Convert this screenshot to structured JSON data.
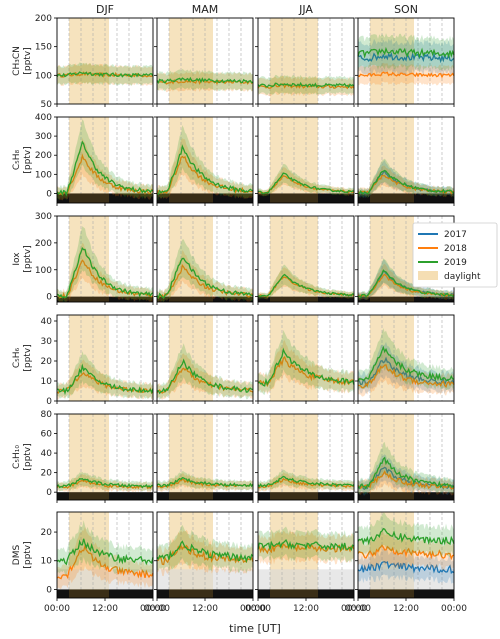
{
  "chart_data": {
    "type": "line",
    "columns": [
      "DJF",
      "MAM",
      "JJA",
      "SON"
    ],
    "x_ticks": [
      "00:00",
      "12:00",
      "00:00"
    ],
    "xlabel": "time [UT]",
    "legend": {
      "placement": "right",
      "items": [
        {
          "name": "2017",
          "color": "#1f77b4"
        },
        {
          "name": "2018",
          "color": "#ff7f0e"
        },
        {
          "name": "2019",
          "color": "#2ca02c"
        },
        {
          "name": "daylight",
          "color": "#f5deb3"
        }
      ]
    },
    "daylight_hours": {
      "DJF": [
        3,
        13
      ],
      "MAM": [
        3,
        14
      ],
      "JJA": [
        3,
        15
      ],
      "SON": [
        3,
        14
      ]
    },
    "rows": [
      {
        "ylabel_lines": [
          "CH₃CN",
          "[pptv]"
        ],
        "ylim": [
          50,
          200
        ],
        "yticks": [
          "50",
          "100",
          "150",
          "200"
        ],
        "ytick_values": [
          50,
          100,
          150,
          200
        ],
        "visible_ytick_labels": [
          "100",
          "150",
          "200"
        ],
        "black_bar": false,
        "panels": {
          "DJF": {
            "2018": {
              "base": 100,
              "amp": 3,
              "noise": 3
            },
            "2019": {
              "base": 100,
              "amp": 5,
              "noise": 3
            }
          },
          "MAM": {
            "2018": {
              "base": 88,
              "amp": 2,
              "noise": 3
            },
            "2019": {
              "base": 90,
              "amp": 4,
              "noise": 3
            }
          },
          "JJA": {
            "2018": {
              "base": 80,
              "amp": 2,
              "noise": 3
            },
            "2019": {
              "base": 82,
              "amp": 3,
              "noise": 3
            }
          },
          "SON": {
            "2017": {
              "base": 130,
              "amp": 5,
              "noise": 6
            },
            "2018": {
              "base": 100,
              "amp": 3,
              "noise": 3
            },
            "2019": {
              "base": 138,
              "amp": 5,
              "noise": 6
            }
          }
        }
      },
      {
        "ylabel_lines": [
          "C₅H₈",
          "[pptv]"
        ],
        "ylim": [
          -50,
          400
        ],
        "yticks": [
          "0",
          "100",
          "200",
          "300",
          "400"
        ],
        "ytick_values": [
          0,
          100,
          200,
          300,
          400
        ],
        "black_bar": true,
        "panels": {
          "DJF": {
            "2018": {
              "base": 5,
              "amp": 190,
              "noise": 12
            },
            "2019": {
              "base": 5,
              "amp": 265,
              "noise": 12
            }
          },
          "MAM": {
            "2018": {
              "base": 5,
              "amp": 195,
              "noise": 12
            },
            "2019": {
              "base": 5,
              "amp": 240,
              "noise": 12
            }
          },
          "JJA": {
            "2018": {
              "base": 5,
              "amp": 90,
              "noise": 6
            },
            "2019": {
              "base": 5,
              "amp": 100,
              "noise": 6
            }
          },
          "SON": {
            "2017": {
              "base": 5,
              "amp": 110,
              "noise": 8
            },
            "2018": {
              "base": 5,
              "amp": 95,
              "noise": 8
            },
            "2019": {
              "base": 5,
              "amp": 120,
              "noise": 8
            }
          }
        }
      },
      {
        "ylabel_lines": [
          "Iox",
          "[pptv]"
        ],
        "ylim": [
          -20,
          300
        ],
        "yticks": [
          "0",
          "100",
          "200",
          "300"
        ],
        "ytick_values": [
          0,
          100,
          200,
          300
        ],
        "black_bar": true,
        "panels": {
          "DJF": {
            "2018": {
              "base": 3,
              "amp": 135,
              "noise": 8
            },
            "2019": {
              "base": 3,
              "amp": 185,
              "noise": 8
            }
          },
          "MAM": {
            "2018": {
              "base": 3,
              "amp": 110,
              "noise": 8
            },
            "2019": {
              "base": 3,
              "amp": 150,
              "noise": 8
            }
          },
          "JJA": {
            "2018": {
              "base": 3,
              "amp": 75,
              "noise": 4
            },
            "2019": {
              "base": 3,
              "amp": 80,
              "noise": 4
            }
          },
          "SON": {
            "2017": {
              "base": 3,
              "amp": 90,
              "noise": 5
            },
            "2018": {
              "base": 3,
              "amp": 80,
              "noise": 5
            },
            "2019": {
              "base": 3,
              "amp": 95,
              "noise": 5
            }
          }
        }
      },
      {
        "ylabel_lines": [
          "C₅H₆",
          "[pptv]"
        ],
        "ylim": [
          0,
          43
        ],
        "yticks": [
          "0",
          "10",
          "20",
          "30",
          "40"
        ],
        "ytick_values": [
          0,
          10,
          20,
          30,
          40
        ],
        "black_bar": false,
        "panels": {
          "DJF": {
            "2018": {
              "base": 5,
              "amp": 10,
              "noise": 1.2
            },
            "2019": {
              "base": 5,
              "amp": 12,
              "noise": 1.2
            }
          },
          "MAM": {
            "2018": {
              "base": 5,
              "amp": 12,
              "noise": 1.2
            },
            "2019": {
              "base": 5,
              "amp": 15,
              "noise": 1.2
            }
          },
          "JJA": {
            "2018": {
              "base": 9,
              "amp": 12,
              "noise": 1.5
            },
            "2019": {
              "base": 9,
              "amp": 16,
              "noise": 1.5
            }
          },
          "SON": {
            "2017": {
              "base": 9,
              "amp": 12,
              "noise": 1.5
            },
            "2018": {
              "base": 8,
              "amp": 10,
              "noise": 1.5
            },
            "2019": {
              "base": 11,
              "amp": 15,
              "noise": 1.5
            }
          }
        }
      },
      {
        "ylabel_lines": [
          "C₅H₁₀",
          "[pptv]"
        ],
        "ylim": [
          -8,
          80
        ],
        "yticks": [
          "0",
          "20",
          "40",
          "60",
          "80"
        ],
        "ytick_values": [
          0,
          20,
          40,
          60,
          80
        ],
        "black_bar": true,
        "panels": {
          "DJF": {
            "2018": {
              "base": 5,
              "amp": 7,
              "noise": 1.5
            },
            "2019": {
              "base": 6,
              "amp": 8,
              "noise": 1.5
            }
          },
          "MAM": {
            "2018": {
              "base": 6,
              "amp": 6,
              "noise": 1.5
            },
            "2019": {
              "base": 7,
              "amp": 7,
              "noise": 1.5
            }
          },
          "JJA": {
            "2018": {
              "base": 6,
              "amp": 7,
              "noise": 1.5
            },
            "2019": {
              "base": 7,
              "amp": 8,
              "noise": 1.5
            }
          },
          "SON": {
            "2017": {
              "base": 5,
              "amp": 20,
              "noise": 2.5
            },
            "2018": {
              "base": 5,
              "amp": 15,
              "noise": 2.5
            },
            "2019": {
              "base": 6,
              "amp": 28,
              "noise": 2.5
            }
          }
        }
      },
      {
        "ylabel_lines": [
          "DMS",
          "[pptv]"
        ],
        "ylim": [
          -3,
          27
        ],
        "yticks": [
          "0",
          "10",
          "20"
        ],
        "ytick_values": [
          0,
          10,
          20
        ],
        "black_bar": true,
        "gray_band": true,
        "panels": {
          "DJF": {
            "2018": {
              "base": 5,
              "amp": 10,
              "noise": 1.3
            },
            "2019": {
              "base": 10,
              "amp": 7,
              "noise": 1.3
            }
          },
          "MAM": {
            "2018": {
              "base": 10,
              "amp": 5,
              "noise": 1.3
            },
            "2019": {
              "base": 11,
              "amp": 5,
              "noise": 1.3
            }
          },
          "JJA": {
            "2018": {
              "base": 14,
              "amp": 1,
              "noise": 1.3
            },
            "2019": {
              "base": 15,
              "amp": 1,
              "noise": 1.3
            }
          },
          "SON": {
            "2017": {
              "base": 7,
              "amp": 2,
              "noise": 1.3
            },
            "2018": {
              "base": 12,
              "amp": 3,
              "noise": 1.3
            },
            "2019": {
              "base": 17,
              "amp": 3,
              "noise": 1.3
            }
          }
        }
      }
    ]
  }
}
